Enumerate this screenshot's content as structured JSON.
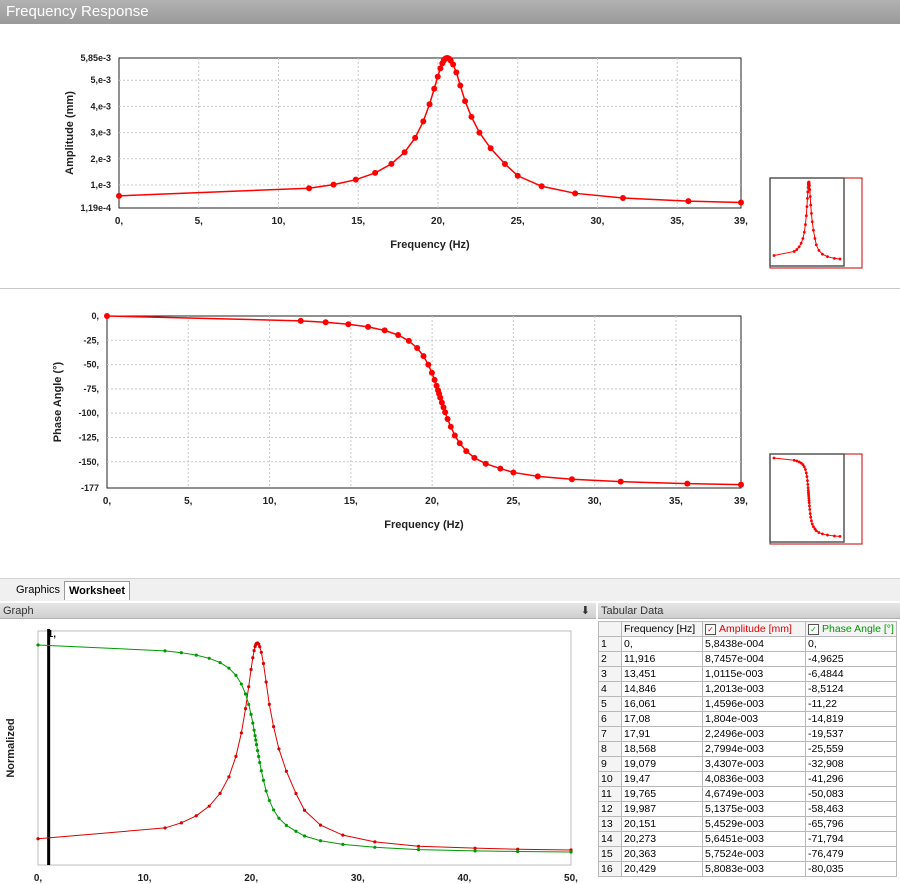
{
  "window": {
    "title": "Frequency Response"
  },
  "colors": {
    "amplitude": "#dd0000",
    "phase": "#009900",
    "accent": "#ff0000"
  },
  "amplitude_chart": {
    "ylabel": "Amplitude (mm)",
    "xlabel": "Frequency (Hz)",
    "yticks": [
      "5,85e-3",
      "5,e-3",
      "4,e-3",
      "3,e-3",
      "2,e-3",
      "1,e-3",
      "1,19e-4"
    ],
    "xticks": [
      "0,",
      "5,",
      "10,",
      "15,",
      "20,",
      "25,",
      "30,",
      "35,",
      "39,"
    ]
  },
  "phase_chart": {
    "ylabel": "Phase Angle (°)",
    "xlabel": "Frequency (Hz)",
    "yticks": [
      "0,",
      "-25,",
      "-50,",
      "-75,",
      "-100,",
      "-125,",
      "-150,",
      "-177"
    ],
    "xticks": [
      "0,",
      "5,",
      "10,",
      "15,",
      "20,",
      "25,",
      "30,",
      "35,",
      "39,"
    ]
  },
  "tabs": [
    {
      "label": "Graphics",
      "active": false
    },
    {
      "label": "Worksheet",
      "active": true
    }
  ],
  "graph_panel": {
    "title": "Graph",
    "ylabel": "Normalized",
    "cursor_label": "1,",
    "xticks": [
      "0,",
      "10,",
      "20,",
      "30,",
      "40,",
      "50,"
    ]
  },
  "tabular_panel": {
    "title": "Tabular Data",
    "headers": [
      "Frequency [Hz]",
      "Amplitude [mm]",
      "Phase Angle [°]"
    ],
    "rows": [
      [
        "1",
        "0,",
        "5,8438e-004",
        "0,"
      ],
      [
        "2",
        "11,916",
        "8,7457e-004",
        "-4,9625"
      ],
      [
        "3",
        "13,451",
        "1,0115e-003",
        "-6,4844"
      ],
      [
        "4",
        "14,846",
        "1,2013e-003",
        "-8,5124"
      ],
      [
        "5",
        "16,061",
        "1,4596e-003",
        "-11,22"
      ],
      [
        "6",
        "17,08",
        "1,804e-003",
        "-14,819"
      ],
      [
        "7",
        "17,91",
        "2,2496e-003",
        "-19,537"
      ],
      [
        "8",
        "18,568",
        "2,7994e-003",
        "-25,559"
      ],
      [
        "9",
        "19,079",
        "3,4307e-003",
        "-32,908"
      ],
      [
        "10",
        "19,47",
        "4,0836e-003",
        "-41,296"
      ],
      [
        "11",
        "19,765",
        "4,6749e-003",
        "-50,083"
      ],
      [
        "12",
        "19,987",
        "5,1375e-003",
        "-58,463"
      ],
      [
        "13",
        "20,151",
        "5,4529e-003",
        "-65,796"
      ],
      [
        "14",
        "20,273",
        "5,6451e-003",
        "-71,794"
      ],
      [
        "15",
        "20,363",
        "5,7524e-003",
        "-76,479"
      ],
      [
        "16",
        "20,429",
        "5,8083e-003",
        "-80,035"
      ]
    ]
  },
  "chart_data": {
    "type": "line",
    "title": "Frequency Response",
    "xlabel": "Frequency (Hz)",
    "xlim": [
      0,
      39
    ],
    "series": [
      {
        "name": "Amplitude [mm]",
        "ylim": [
          0.000119,
          0.00585
        ],
        "x": [
          0,
          11.916,
          13.451,
          14.846,
          16.061,
          17.08,
          17.91,
          18.568,
          19.079,
          19.47,
          19.765,
          19.987,
          20.151,
          20.273,
          20.363,
          20.429,
          20.5,
          20.6,
          20.7,
          20.8,
          20.95,
          21.15,
          21.4,
          21.7,
          22.1,
          22.6,
          23.3,
          24.2,
          25.0,
          26.5,
          28.6,
          31.6,
          35.7,
          39
        ],
        "y": [
          0.00058438,
          0.00087457,
          0.0010115,
          0.0012013,
          0.0014596,
          0.001804,
          0.0022496,
          0.0027994,
          0.0034307,
          0.0040836,
          0.0046749,
          0.0051375,
          0.0054529,
          0.0056451,
          0.0057524,
          0.0058083,
          0.00584,
          0.00585,
          0.00582,
          0.00575,
          0.0056,
          0.0053,
          0.0048,
          0.0042,
          0.0036,
          0.003,
          0.0024,
          0.0018,
          0.00135,
          0.00095,
          0.00068,
          0.0005,
          0.00038,
          0.00033
        ]
      },
      {
        "name": "Phase Angle [°]",
        "ylim": [
          -177,
          0
        ],
        "x": [
          0,
          11.916,
          13.451,
          14.846,
          16.061,
          17.08,
          17.91,
          18.568,
          19.079,
          19.47,
          19.765,
          19.987,
          20.151,
          20.273,
          20.363,
          20.429,
          20.5,
          20.6,
          20.7,
          20.8,
          20.95,
          21.15,
          21.4,
          21.7,
          22.1,
          22.6,
          23.3,
          24.2,
          25.0,
          26.5,
          28.6,
          31.6,
          35.7,
          39
        ],
        "y": [
          0,
          -4.9625,
          -6.4844,
          -8.5124,
          -11.22,
          -14.819,
          -19.537,
          -25.559,
          -32.908,
          -41.296,
          -50.083,
          -58.463,
          -65.796,
          -71.794,
          -76.479,
          -80.035,
          -84,
          -89,
          -94,
          -99,
          -106,
          -114,
          -123,
          -131,
          -139,
          -146,
          -152,
          -157,
          -161,
          -165,
          -168,
          -170.5,
          -172.5,
          -173.5
        ]
      }
    ]
  }
}
